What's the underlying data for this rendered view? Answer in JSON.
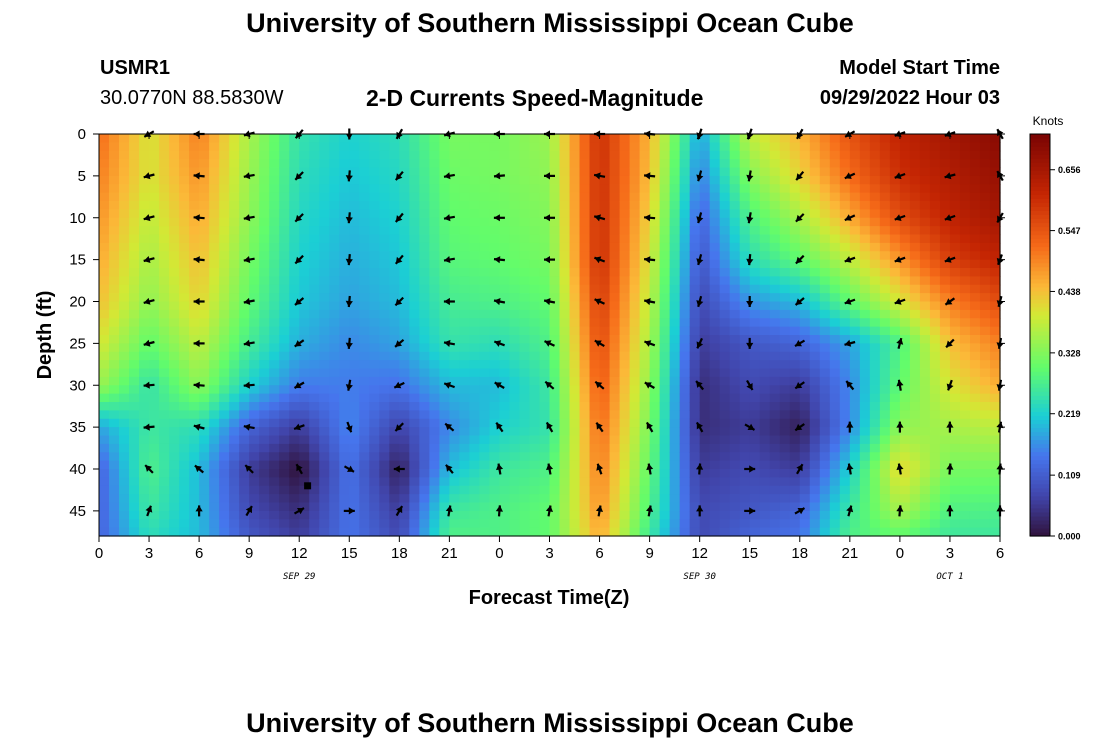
{
  "header": {
    "title": "University of Southern Mississippi Ocean Cube",
    "station_id": "USMR1",
    "coordinates": "30.0770N  88.5830W",
    "plot_title": "2-D Currents Speed-Magnitude",
    "model_start_label": "Model Start Time",
    "model_start_value": "09/29/2022 Hour 03"
  },
  "footer": {
    "title": "University of Southern Mississippi Ocean Cube"
  },
  "chart_data": {
    "type": "heatmap",
    "title": "2-D Currents Speed-Magnitude",
    "xlabel": "Forecast Time(Z)",
    "ylabel": "Depth (ft)",
    "x_hours": [
      0,
      3,
      6,
      9,
      12,
      15,
      18,
      21,
      24,
      27,
      30,
      33,
      36,
      39,
      42,
      45,
      48,
      51,
      54
    ],
    "x_tick_labels": [
      "0",
      "3",
      "6",
      "9",
      "12",
      "15",
      "18",
      "21",
      "0",
      "3",
      "6",
      "9",
      "12",
      "15",
      "18",
      "21",
      "0",
      "3",
      "6"
    ],
    "xlim": [
      0,
      54
    ],
    "date_labels": [
      {
        "label": "SEP 29",
        "hour": 12
      },
      {
        "label": "SEP 30",
        "hour": 36
      },
      {
        "label": "OCT 1",
        "hour": 51
      }
    ],
    "y_ticks": [
      0,
      5,
      10,
      15,
      20,
      25,
      30,
      35,
      40,
      45
    ],
    "ylim": [
      0,
      48
    ],
    "colorbar": {
      "label": "Knots",
      "min": 0.0,
      "max": 0.72,
      "ticks": [
        "0.000",
        "0.109",
        "0.219",
        "0.328",
        "0.438",
        "0.547",
        "0.656"
      ],
      "tick_values": [
        0.0,
        0.109,
        0.219,
        0.328,
        0.438,
        0.547,
        0.656
      ]
    },
    "speed_grid": {
      "times": [
        0,
        3,
        6,
        9,
        12,
        15,
        18,
        21,
        24,
        27,
        30,
        33,
        36,
        39,
        42,
        45,
        48,
        51,
        54
      ],
      "depths": [
        0,
        5,
        10,
        15,
        20,
        25,
        30,
        35,
        40,
        45,
        48
      ],
      "values": [
        [
          0.52,
          0.4,
          0.5,
          0.36,
          0.25,
          0.22,
          0.24,
          0.32,
          0.32,
          0.35,
          0.6,
          0.45,
          0.18,
          0.38,
          0.45,
          0.55,
          0.62,
          0.66,
          0.7
        ],
        [
          0.5,
          0.4,
          0.48,
          0.35,
          0.24,
          0.21,
          0.23,
          0.31,
          0.32,
          0.34,
          0.6,
          0.44,
          0.15,
          0.33,
          0.42,
          0.52,
          0.6,
          0.64,
          0.68
        ],
        [
          0.48,
          0.38,
          0.46,
          0.34,
          0.23,
          0.2,
          0.22,
          0.3,
          0.31,
          0.33,
          0.6,
          0.42,
          0.12,
          0.28,
          0.36,
          0.46,
          0.56,
          0.62,
          0.66
        ],
        [
          0.46,
          0.36,
          0.44,
          0.32,
          0.22,
          0.19,
          0.21,
          0.29,
          0.3,
          0.32,
          0.6,
          0.4,
          0.1,
          0.24,
          0.3,
          0.38,
          0.48,
          0.58,
          0.62
        ],
        [
          0.44,
          0.34,
          0.42,
          0.3,
          0.21,
          0.18,
          0.2,
          0.27,
          0.28,
          0.3,
          0.58,
          0.38,
          0.08,
          0.17,
          0.2,
          0.3,
          0.4,
          0.5,
          0.56
        ],
        [
          0.4,
          0.3,
          0.38,
          0.27,
          0.19,
          0.16,
          0.18,
          0.25,
          0.24,
          0.28,
          0.56,
          0.36,
          0.06,
          0.1,
          0.12,
          0.18,
          0.28,
          0.44,
          0.5
        ],
        [
          0.35,
          0.25,
          0.34,
          0.22,
          0.15,
          0.15,
          0.14,
          0.2,
          0.2,
          0.26,
          0.54,
          0.34,
          0.04,
          0.08,
          0.06,
          0.16,
          0.3,
          0.4,
          0.46
        ],
        [
          0.18,
          0.26,
          0.24,
          0.12,
          0.06,
          0.16,
          0.07,
          0.16,
          0.22,
          0.25,
          0.52,
          0.32,
          0.04,
          0.06,
          0.02,
          0.16,
          0.34,
          0.36,
          0.38
        ],
        [
          0.12,
          0.28,
          0.2,
          0.06,
          0.0,
          0.14,
          0.02,
          0.2,
          0.26,
          0.28,
          0.5,
          0.3,
          0.06,
          0.08,
          0.06,
          0.22,
          0.42,
          0.32,
          0.32
        ],
        [
          0.12,
          0.26,
          0.2,
          0.08,
          0.04,
          0.14,
          0.06,
          0.26,
          0.28,
          0.3,
          0.48,
          0.28,
          0.08,
          0.1,
          0.12,
          0.26,
          0.36,
          0.28,
          0.28
        ],
        [
          0.12,
          0.24,
          0.2,
          0.1,
          0.06,
          0.14,
          0.08,
          0.28,
          0.28,
          0.3,
          0.46,
          0.26,
          0.08,
          0.12,
          0.14,
          0.28,
          0.3,
          0.26,
          0.26
        ]
      ]
    },
    "vectors": {
      "times": [
        3,
        6,
        9,
        12,
        15,
        18,
        21,
        24,
        27,
        30,
        33,
        36,
        39,
        42,
        45,
        48,
        51,
        54
      ],
      "depths": [
        0,
        5,
        10,
        15,
        20,
        25,
        30,
        35,
        40,
        45
      ],
      "directions_deg_from_east": [
        [
          210,
          180,
          195,
          230,
          270,
          240,
          195,
          180,
          180,
          180,
          175,
          250,
          250,
          240,
          210,
          200,
          200,
          120
        ],
        [
          195,
          175,
          190,
          225,
          265,
          230,
          190,
          185,
          180,
          170,
          175,
          255,
          260,
          230,
          205,
          200,
          195,
          120
        ],
        [
          195,
          175,
          190,
          225,
          265,
          230,
          190,
          180,
          180,
          165,
          175,
          255,
          260,
          225,
          205,
          200,
          200,
          240
        ],
        [
          195,
          175,
          190,
          225,
          265,
          230,
          190,
          175,
          180,
          160,
          175,
          255,
          265,
          225,
          200,
          200,
          200,
          250
        ],
        [
          195,
          180,
          190,
          220,
          265,
          225,
          180,
          170,
          170,
          155,
          170,
          255,
          270,
          220,
          200,
          200,
          215,
          255
        ],
        [
          195,
          180,
          190,
          215,
          265,
          220,
          170,
          160,
          155,
          150,
          160,
          245,
          270,
          210,
          195,
          75,
          225,
          260
        ],
        [
          185,
          175,
          185,
          210,
          260,
          205,
          160,
          150,
          140,
          140,
          150,
          130,
          300,
          215,
          130,
          100,
          250,
          260
        ],
        [
          185,
          165,
          170,
          200,
          290,
          225,
          140,
          125,
          120,
          125,
          120,
          120,
          330,
          215,
          90,
          90,
          90,
          80
        ],
        [
          135,
          140,
          135,
          120,
          330,
          180,
          130,
          100,
          100,
          110,
          100,
          85,
          0,
          60,
          100,
          100,
          85,
          85
        ],
        [
          70,
          90,
          60,
          30,
          0,
          60,
          80,
          85,
          80,
          80,
          80,
          90,
          0,
          30,
          75,
          85,
          90,
          90
        ]
      ]
    },
    "marker": {
      "hour": 12.5,
      "depth": 42
    }
  }
}
